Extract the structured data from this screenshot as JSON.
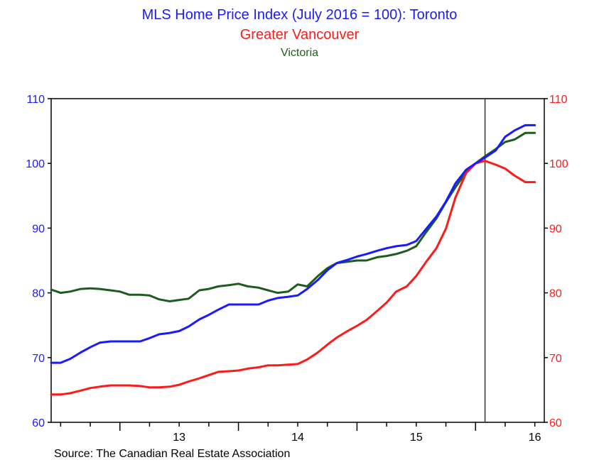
{
  "chart_data": {
    "type": "line",
    "title": {
      "line1": "MLS Home Price Index (July 2016 = 100): Toronto",
      "line2": "Greater Vancouver",
      "line3": "Victoria"
    },
    "source": "Source:  The Canadian Real Estate Association",
    "colors": {
      "toronto": "#1a1aff",
      "vancouver": "#ff1a1a",
      "victoria": "#1e5c1e",
      "axis": "#000000"
    },
    "x_ticks": [
      "13",
      "14",
      "15",
      "16"
    ],
    "left_axis": {
      "ylim": [
        60,
        110
      ],
      "ticks": [
        "60",
        "70",
        "80",
        "90",
        "100",
        "110"
      ]
    },
    "right_axis": {
      "ylim": [
        60,
        110
      ],
      "ticks": [
        "60",
        "70",
        "80",
        "90",
        "100",
        "110"
      ]
    },
    "xlim": [
      2012.42,
      2016.58
    ],
    "reference_line_x": 2016.08,
    "x": [
      2012.42,
      2012.5,
      2012.58,
      2012.67,
      2012.75,
      2012.83,
      2012.92,
      2013.0,
      2013.08,
      2013.17,
      2013.25,
      2013.33,
      2013.42,
      2013.5,
      2013.58,
      2013.67,
      2013.75,
      2013.83,
      2013.92,
      2014.0,
      2014.08,
      2014.17,
      2014.25,
      2014.33,
      2014.42,
      2014.5,
      2014.58,
      2014.67,
      2014.75,
      2014.83,
      2014.92,
      2015.0,
      2015.08,
      2015.17,
      2015.25,
      2015.33,
      2015.42,
      2015.5,
      2015.58,
      2015.67,
      2015.75,
      2015.83,
      2015.92,
      2016.0,
      2016.08,
      2016.17,
      2016.25,
      2016.33,
      2016.42,
      2016.5
    ],
    "series": [
      {
        "name": "Toronto",
        "color": "#1a1aff",
        "values": [
          69.2,
          69.2,
          69.8,
          70.8,
          71.6,
          72.3,
          72.5,
          72.5,
          72.5,
          72.5,
          73.0,
          73.6,
          73.8,
          74.1,
          74.8,
          75.9,
          76.6,
          77.4,
          78.2,
          78.2,
          78.2,
          78.2,
          78.8,
          79.2,
          79.4,
          79.6,
          80.6,
          82.0,
          83.5,
          84.6,
          85.1,
          85.6,
          86.0,
          86.5,
          86.9,
          87.2,
          87.4,
          88.0,
          89.8,
          91.8,
          94.1,
          96.9,
          99.0,
          100.0,
          100.9,
          102.0,
          104.1,
          105.1,
          105.9,
          105.9
        ]
      },
      {
        "name": "Greater Vancouver",
        "color": "#ff1a1a",
        "values": [
          64.3,
          64.3,
          64.5,
          64.9,
          65.3,
          65.5,
          65.7,
          65.7,
          65.7,
          65.6,
          65.4,
          65.4,
          65.5,
          65.8,
          66.3,
          66.8,
          67.3,
          67.8,
          67.9,
          68.0,
          68.3,
          68.5,
          68.8,
          68.8,
          68.9,
          69.0,
          69.7,
          70.8,
          72.0,
          73.1,
          74.1,
          74.9,
          75.8,
          77.2,
          78.5,
          80.2,
          81.0,
          82.6,
          84.7,
          86.9,
          89.9,
          94.7,
          98.5,
          100.0,
          100.4,
          99.8,
          99.2,
          98.1,
          97.1,
          97.1
        ]
      },
      {
        "name": "Victoria",
        "color": "#1e5c1e",
        "values": [
          80.5,
          80.0,
          80.2,
          80.6,
          80.7,
          80.6,
          80.4,
          80.2,
          79.7,
          79.7,
          79.6,
          79.0,
          78.7,
          78.9,
          79.1,
          80.4,
          80.6,
          81.0,
          81.2,
          81.4,
          81.0,
          80.8,
          80.4,
          80.0,
          80.2,
          81.3,
          81.0,
          82.6,
          83.8,
          84.6,
          84.8,
          85.0,
          85.0,
          85.5,
          85.7,
          86.0,
          86.5,
          87.2,
          89.3,
          91.5,
          94.0,
          96.3,
          98.6,
          100.0,
          101.1,
          102.2,
          103.3,
          103.7,
          104.7,
          104.7
        ]
      }
    ]
  }
}
